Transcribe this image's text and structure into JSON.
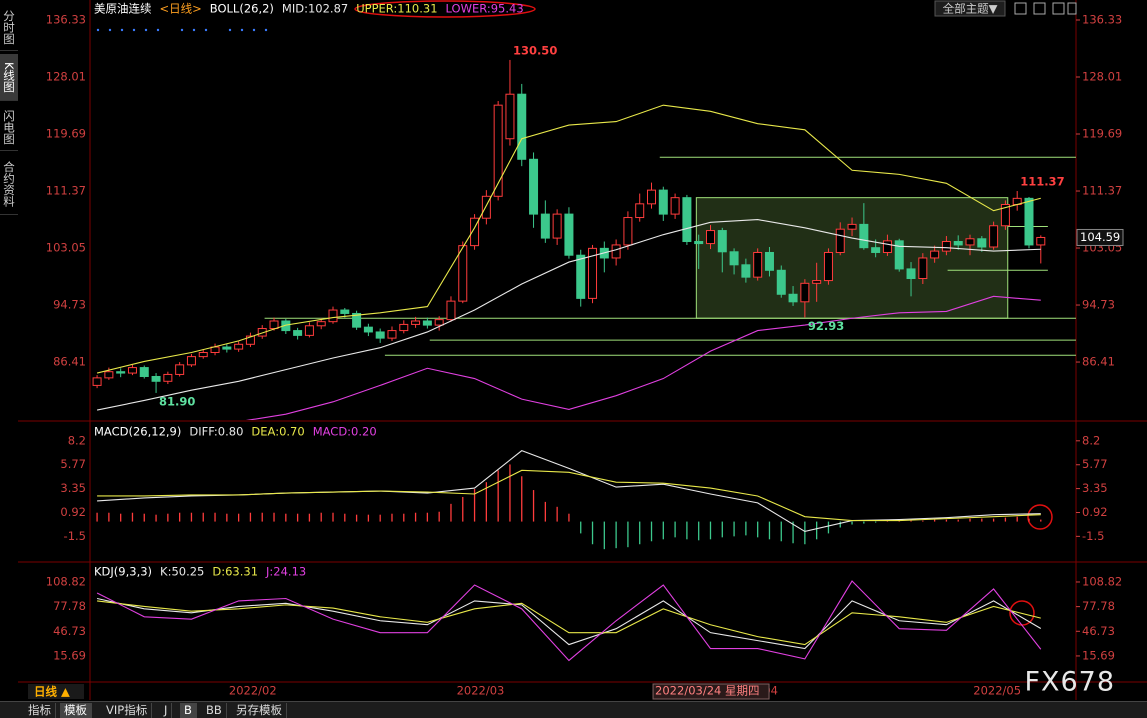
{
  "ui": {
    "sidebar": [
      "分时图",
      "K线图",
      "闪电图",
      "合约资料"
    ],
    "theme_button": "全部主题▼",
    "period_button": "日线 ▲",
    "tabs": [
      "指标",
      "模板",
      "VIP指标",
      "J",
      "B",
      "BB",
      "另存模板"
    ],
    "watermark": "FX678"
  },
  "chart_data": [
    {
      "type": "candlestick",
      "title": "美原油连续",
      "period": "<日线>",
      "indicator": "BOLL(26,2)",
      "xlim": [
        -0.6,
        82.9
      ],
      "ylim": [
        77.95,
        136.33
      ],
      "yticks": [
        136.33,
        128.01,
        119.69,
        111.37,
        103.05,
        94.73,
        86.41
      ],
      "up_color": "#ff3c3c",
      "down_color": "#3cc88c",
      "xticks": [
        {
          "value": 13.2,
          "label": "2022/02"
        },
        {
          "value": 32.5,
          "label": "2022/03"
        },
        {
          "value": 57.1,
          "label": "04"
        },
        {
          "value": 76.3,
          "label": "2022/05"
        }
      ],
      "cursor": {
        "value": 47.3,
        "label": "2022/03/24 星期四"
      },
      "candles": [
        [
          83.0,
          84.5,
          82.6,
          84.1
        ],
        [
          84.1,
          85.6,
          83.8,
          85.0
        ],
        [
          85.0,
          85.5,
          84.2,
          84.8
        ],
        [
          84.8,
          86.0,
          84.5,
          85.6
        ],
        [
          85.6,
          85.9,
          84.0,
          84.3
        ],
        [
          84.3,
          84.8,
          81.9,
          83.6
        ],
        [
          83.6,
          85.0,
          83.2,
          84.6
        ],
        [
          84.6,
          86.4,
          84.3,
          86.0
        ],
        [
          86.0,
          87.6,
          85.7,
          87.2
        ],
        [
          87.2,
          88.3,
          86.9,
          87.8
        ],
        [
          87.8,
          89.1,
          87.4,
          88.6
        ],
        [
          88.6,
          89.0,
          87.8,
          88.3
        ],
        [
          88.3,
          89.4,
          87.9,
          89.0
        ],
        [
          89.0,
          90.7,
          88.6,
          90.2
        ],
        [
          90.2,
          91.8,
          89.8,
          91.3
        ],
        [
          91.3,
          92.9,
          91.0,
          92.4
        ],
        [
          92.4,
          92.7,
          90.5,
          91.0
        ],
        [
          91.0,
          91.4,
          89.7,
          90.3
        ],
        [
          90.3,
          92.2,
          90.0,
          91.7
        ],
        [
          91.7,
          92.8,
          91.2,
          92.3
        ],
        [
          92.3,
          94.5,
          92.0,
          94.0
        ],
        [
          94.0,
          94.3,
          92.9,
          93.5
        ],
        [
          93.5,
          93.9,
          91.1,
          91.5
        ],
        [
          91.5,
          92.0,
          90.2,
          90.8
        ],
        [
          90.8,
          91.3,
          89.2,
          89.9
        ],
        [
          89.9,
          91.6,
          89.5,
          91.0
        ],
        [
          91.0,
          92.5,
          90.6,
          91.9
        ],
        [
          91.9,
          93.0,
          91.4,
          92.4
        ],
        [
          92.4,
          92.9,
          91.3,
          91.8
        ],
        [
          91.8,
          93.1,
          91.0,
          92.6
        ],
        [
          92.6,
          96.0,
          92.3,
          95.3
        ],
        [
          95.3,
          104.0,
          95.0,
          103.4
        ],
        [
          103.4,
          108.0,
          102.8,
          107.4
        ],
        [
          107.4,
          111.5,
          106.5,
          110.6
        ],
        [
          110.6,
          124.5,
          110.0,
          123.9
        ],
        [
          119.0,
          130.5,
          118.0,
          125.5
        ],
        [
          125.5,
          127.0,
          115.0,
          116.0
        ],
        [
          116.0,
          117.0,
          106.0,
          108.0
        ],
        [
          108.0,
          110.0,
          103.8,
          104.5
        ],
        [
          104.5,
          108.7,
          103.5,
          108.0
        ],
        [
          108.0,
          109.0,
          101.5,
          102.0
        ],
        [
          102.0,
          102.8,
          94.5,
          95.7
        ],
        [
          95.7,
          103.5,
          95.0,
          103.0
        ],
        [
          103.0,
          104.0,
          99.5,
          101.6
        ],
        [
          101.6,
          104.3,
          100.5,
          103.5
        ],
        [
          103.5,
          108.4,
          102.8,
          107.5
        ],
        [
          107.5,
          111.0,
          106.9,
          109.5
        ],
        [
          109.5,
          112.6,
          108.8,
          111.5
        ],
        [
          111.5,
          112.0,
          107.0,
          108.0
        ],
        [
          108.0,
          111.0,
          107.3,
          110.4
        ],
        [
          110.4,
          110.8,
          103.5,
          104.0
        ],
        [
          104.0,
          105.0,
          100.0,
          103.7
        ],
        [
          103.7,
          106.4,
          102.9,
          105.6
        ],
        [
          105.6,
          106.0,
          99.5,
          102.5
        ],
        [
          102.5,
          103.0,
          99.2,
          100.6
        ],
        [
          100.6,
          101.5,
          98.0,
          98.8
        ],
        [
          98.8,
          103.0,
          98.3,
          102.4
        ],
        [
          102.4,
          103.2,
          98.9,
          99.8
        ],
        [
          99.8,
          100.5,
          95.8,
          96.3
        ],
        [
          96.3,
          97.5,
          94.6,
          95.2
        ],
        [
          95.2,
          98.5,
          92.93,
          97.9
        ],
        [
          97.9,
          100.9,
          95.2,
          98.3
        ],
        [
          98.3,
          103.0,
          97.7,
          102.4
        ],
        [
          102.4,
          106.8,
          102.0,
          105.8
        ],
        [
          105.8,
          107.5,
          104.8,
          106.5
        ],
        [
          106.5,
          109.6,
          102.8,
          103.1
        ],
        [
          103.1,
          104.3,
          101.7,
          102.4
        ],
        [
          102.4,
          105.0,
          101.9,
          104.1
        ],
        [
          104.1,
          104.4,
          99.6,
          100.0
        ],
        [
          100.0,
          101.0,
          96.0,
          98.6
        ],
        [
          98.6,
          102.3,
          97.8,
          101.6
        ],
        [
          101.6,
          103.4,
          100.9,
          102.6
        ],
        [
          102.6,
          104.8,
          102.0,
          104.0
        ],
        [
          104.0,
          104.9,
          102.8,
          103.5
        ],
        [
          103.5,
          105.0,
          102.0,
          104.4
        ],
        [
          104.4,
          104.8,
          102.5,
          103.2
        ],
        [
          103.2,
          106.9,
          102.8,
          106.3
        ],
        [
          106.3,
          110.0,
          105.7,
          109.4
        ],
        [
          109.4,
          111.37,
          108.5,
          110.3
        ],
        [
          110.3,
          110.5,
          103.0,
          103.5
        ],
        [
          103.5,
          104.9,
          100.8,
          104.59
        ]
      ],
      "x": [
        0,
        4,
        8,
        12,
        16,
        20,
        24,
        28,
        32,
        36,
        40,
        44,
        48,
        52,
        56,
        60,
        64,
        68,
        72,
        76,
        80
      ],
      "series": [
        {
          "name": "MID:102.87",
          "color": "#e8e8e8",
          "values": [
            79.4,
            80.8,
            82.3,
            83.6,
            85.3,
            87.0,
            88.5,
            90.8,
            94.0,
            97.8,
            101.0,
            102.8,
            105.0,
            106.8,
            107.2,
            106.0,
            104.5,
            103.3,
            103.1,
            102.6,
            102.87
          ]
        },
        {
          "name": "UPPER:110.31",
          "color": "#e8e84a",
          "values": [
            84.8,
            86.5,
            87.8,
            89.5,
            91.8,
            92.9,
            93.6,
            94.5,
            106.0,
            119.0,
            121.0,
            121.5,
            123.9,
            123.0,
            121.2,
            120.3,
            114.4,
            113.8,
            112.5,
            108.5,
            110.31
          ]
        },
        {
          "name": "LOWER:95.43",
          "color": "#e040e0",
          "values": [
            74.0,
            75.1,
            76.8,
            77.7,
            78.8,
            80.6,
            83.0,
            85.5,
            84.0,
            81.0,
            79.5,
            81.5,
            84.0,
            88.0,
            91.0,
            91.8,
            92.8,
            93.6,
            93.8,
            96.0,
            95.43
          ]
        }
      ],
      "annotations": [
        {
          "value": 130.5,
          "label": "130.50"
        },
        {
          "value": 81.9,
          "label": "81.90"
        },
        {
          "value": 92.93,
          "label": "92.93"
        },
        {
          "value": 111.37,
          "label": "111.37"
        }
      ],
      "levels": [
        {
          "value": 116.3,
          "from": 47.7,
          "to": 83
        },
        {
          "value": 92.8,
          "from": 14.2,
          "to": 83
        },
        {
          "value": 89.6,
          "from": 28.2,
          "to": 83
        },
        {
          "value": 87.4,
          "from": 24.4,
          "to": 83
        },
        {
          "value": 106.2,
          "from": 77.2,
          "to": 80.6
        },
        {
          "value": 99.8,
          "from": 72.1,
          "to": 80.6
        }
      ],
      "zone": {
        "top": 110.4,
        "bottom": 92.8,
        "from": 50.8,
        "to": 77.2
      }
    },
    {
      "type": "macd",
      "indicator": "MACD(26,12,9)",
      "xlim": [
        -0.6,
        82.9
      ],
      "ylim": [
        -3.9,
        9.5
      ],
      "yticks": [
        8.2,
        5.77,
        3.35,
        0.92,
        -1.5
      ],
      "x": [
        0,
        4,
        8,
        12,
        16,
        20,
        24,
        28,
        32,
        36,
        40,
        44,
        48,
        52,
        56,
        60,
        64,
        68,
        72,
        76,
        80
      ],
      "series": [
        {
          "name": "DIFF:0.80",
          "color": "#e8e8e8",
          "values": [
            2.1,
            2.4,
            2.6,
            2.7,
            2.9,
            3.0,
            3.1,
            2.9,
            3.4,
            7.2,
            5.4,
            3.5,
            3.8,
            2.8,
            1.9,
            -1.0,
            0.1,
            0.2,
            0.4,
            0.7,
            0.8
          ]
        },
        {
          "name": "DEA:0.70",
          "color": "#e8e84a",
          "values": [
            2.6,
            2.6,
            2.7,
            2.7,
            2.9,
            3.0,
            3.1,
            3.0,
            2.8,
            5.2,
            5.0,
            4.0,
            3.9,
            3.4,
            2.6,
            0.5,
            0.1,
            0.1,
            0.3,
            0.5,
            0.7
          ]
        }
      ],
      "histogram": {
        "name": "MACD:0.20",
        "name_color": "#e040e0",
        "up_color": "#ff3c3c",
        "down_color": "#3cc88c",
        "values": [
          0.9,
          0.9,
          0.8,
          0.9,
          0.8,
          0.7,
          0.8,
          0.9,
          0.9,
          0.9,
          0.9,
          0.8,
          0.8,
          0.9,
          0.9,
          0.9,
          0.8,
          0.8,
          0.8,
          0.9,
          0.9,
          0.8,
          0.7,
          0.7,
          0.7,
          0.8,
          0.8,
          0.9,
          0.9,
          1.0,
          1.8,
          2.5,
          3.3,
          4.0,
          5.2,
          5.8,
          4.6,
          3.2,
          2.0,
          1.5,
          0.8,
          -1.2,
          -2.3,
          -2.8,
          -2.7,
          -2.6,
          -2.3,
          -2.0,
          -1.8,
          -1.6,
          -1.8,
          -1.9,
          -1.8,
          -1.6,
          -1.5,
          -1.4,
          -1.6,
          -1.8,
          -2.0,
          -2.2,
          -2.3,
          -1.8,
          -1.2,
          -0.6,
          -0.3,
          -0.2,
          -0.1,
          0.1,
          0.1,
          0.1,
          0.1,
          0.2,
          0.2,
          0.2,
          0.3,
          0.3,
          0.3,
          0.4,
          0.5,
          0.3,
          0.2
        ]
      }
    },
    {
      "type": "line",
      "indicator": "KDJ(9,3,3)",
      "xlim": [
        -0.6,
        82.9
      ],
      "ylim": [
        -14.6,
        123.9
      ],
      "yticks": [
        108.82,
        77.78,
        46.73,
        15.69
      ],
      "x": [
        0,
        4,
        8,
        12,
        16,
        20,
        24,
        28,
        32,
        36,
        40,
        44,
        48,
        52,
        56,
        60,
        64,
        68,
        72,
        76,
        80
      ],
      "series": [
        {
          "name": "K:50.25",
          "color": "#e8e8e8",
          "values": [
            88,
            75,
            70,
            78,
            82,
            72,
            60,
            55,
            85,
            80,
            30,
            50,
            85,
            45,
            35,
            25,
            85,
            60,
            55,
            85,
            50.25
          ]
        },
        {
          "name": "D:63.31",
          "color": "#e8e84a",
          "values": [
            85,
            78,
            72,
            75,
            80,
            76,
            65,
            58,
            75,
            82,
            45,
            45,
            75,
            55,
            40,
            30,
            70,
            65,
            58,
            78,
            63.31
          ]
        },
        {
          "name": "J:24.13",
          "color": "#e040e0",
          "values": [
            95,
            65,
            62,
            85,
            88,
            62,
            45,
            45,
            105,
            75,
            10,
            60,
            105,
            25,
            25,
            12,
            110,
            50,
            48,
            100,
            24.13
          ]
        }
      ]
    }
  ]
}
